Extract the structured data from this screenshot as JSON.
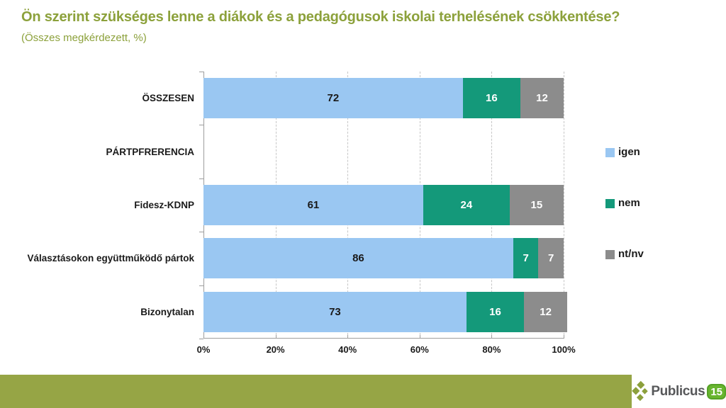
{
  "header": {
    "title": "Ön szerint szükséges lenne a diákok és a pedagógusok iskolai terhelésének csökkentése?",
    "subtitle": "(Összes megkérdezett, %)"
  },
  "chart_data": {
    "type": "bar",
    "orientation": "horizontal",
    "stacked": true,
    "title": "Ön szerint szükséges lenne a diákok és a pedagógusok iskolai terhelésének csökkentése?",
    "subtitle": "(Összes megkérdezett, %)",
    "categories": [
      "ÖSSZESEN",
      "PÁRTPFRERENCIA",
      "Fidesz-KDNP",
      "Választásokon együttműködő pártok",
      "Bizonytalan"
    ],
    "series": [
      {
        "name": "igen",
        "color": "#9AC7F2",
        "label_color": "#1a1a1a",
        "values": [
          72,
          null,
          61,
          86,
          73
        ]
      },
      {
        "name": "nem",
        "color": "#14997A",
        "label_color": "#ffffff",
        "values": [
          16,
          null,
          24,
          7,
          16
        ]
      },
      {
        "name": "nt/nv",
        "color": "#8C8C8C",
        "label_color": "#ffffff",
        "values": [
          12,
          null,
          15,
          7,
          12
        ]
      }
    ],
    "x_ticks": [
      {
        "label": "0%",
        "value": 0
      },
      {
        "label": "20%",
        "value": 20
      },
      {
        "label": "40%",
        "value": 40
      },
      {
        "label": "60%",
        "value": 60
      },
      {
        "label": "80%",
        "value": 80
      },
      {
        "label": "100%",
        "value": 100
      }
    ],
    "xlim": [
      0,
      100
    ],
    "grid": "vertical-dashed",
    "legend_position": "right",
    "value_labels": true
  },
  "footer": {
    "brand": "Publicus",
    "badge": "15",
    "bar_color": "#96A545",
    "logo_icon_color": "#8CA03C",
    "badge_color": "#68B52F"
  }
}
